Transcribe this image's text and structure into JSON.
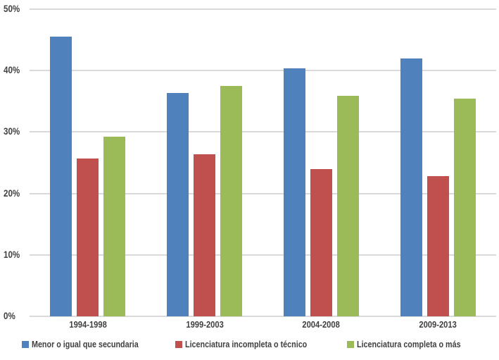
{
  "chart_data": {
    "type": "bar",
    "title": "",
    "xlabel": "",
    "ylabel": "",
    "categories": [
      "1994-1998",
      "1999-2003",
      "2004-2008",
      "2009-2013"
    ],
    "series": [
      {
        "name": "Menor o igual que secundaria",
        "color": "#4F81BD",
        "values": [
          45.5,
          36.4,
          40.4,
          42.0
        ]
      },
      {
        "name": "Licenciatura incompleta o técnico",
        "color": "#C0504D",
        "values": [
          25.7,
          26.4,
          24.0,
          22.8
        ]
      },
      {
        "name": "Licenciatura completa o más",
        "color": "#9BBB59",
        "values": [
          29.3,
          37.5,
          35.9,
          35.4
        ]
      }
    ],
    "ylim": [
      0,
      50
    ],
    "ytick_step": 10,
    "ytick_labels": [
      "0%",
      "10%",
      "20%",
      "30%",
      "40%",
      "50%"
    ],
    "grid": true,
    "legend_position": "bottom"
  },
  "colors": {
    "gridline": "#D9D9D9",
    "text": "#404040",
    "background": "#FFFFFF"
  }
}
